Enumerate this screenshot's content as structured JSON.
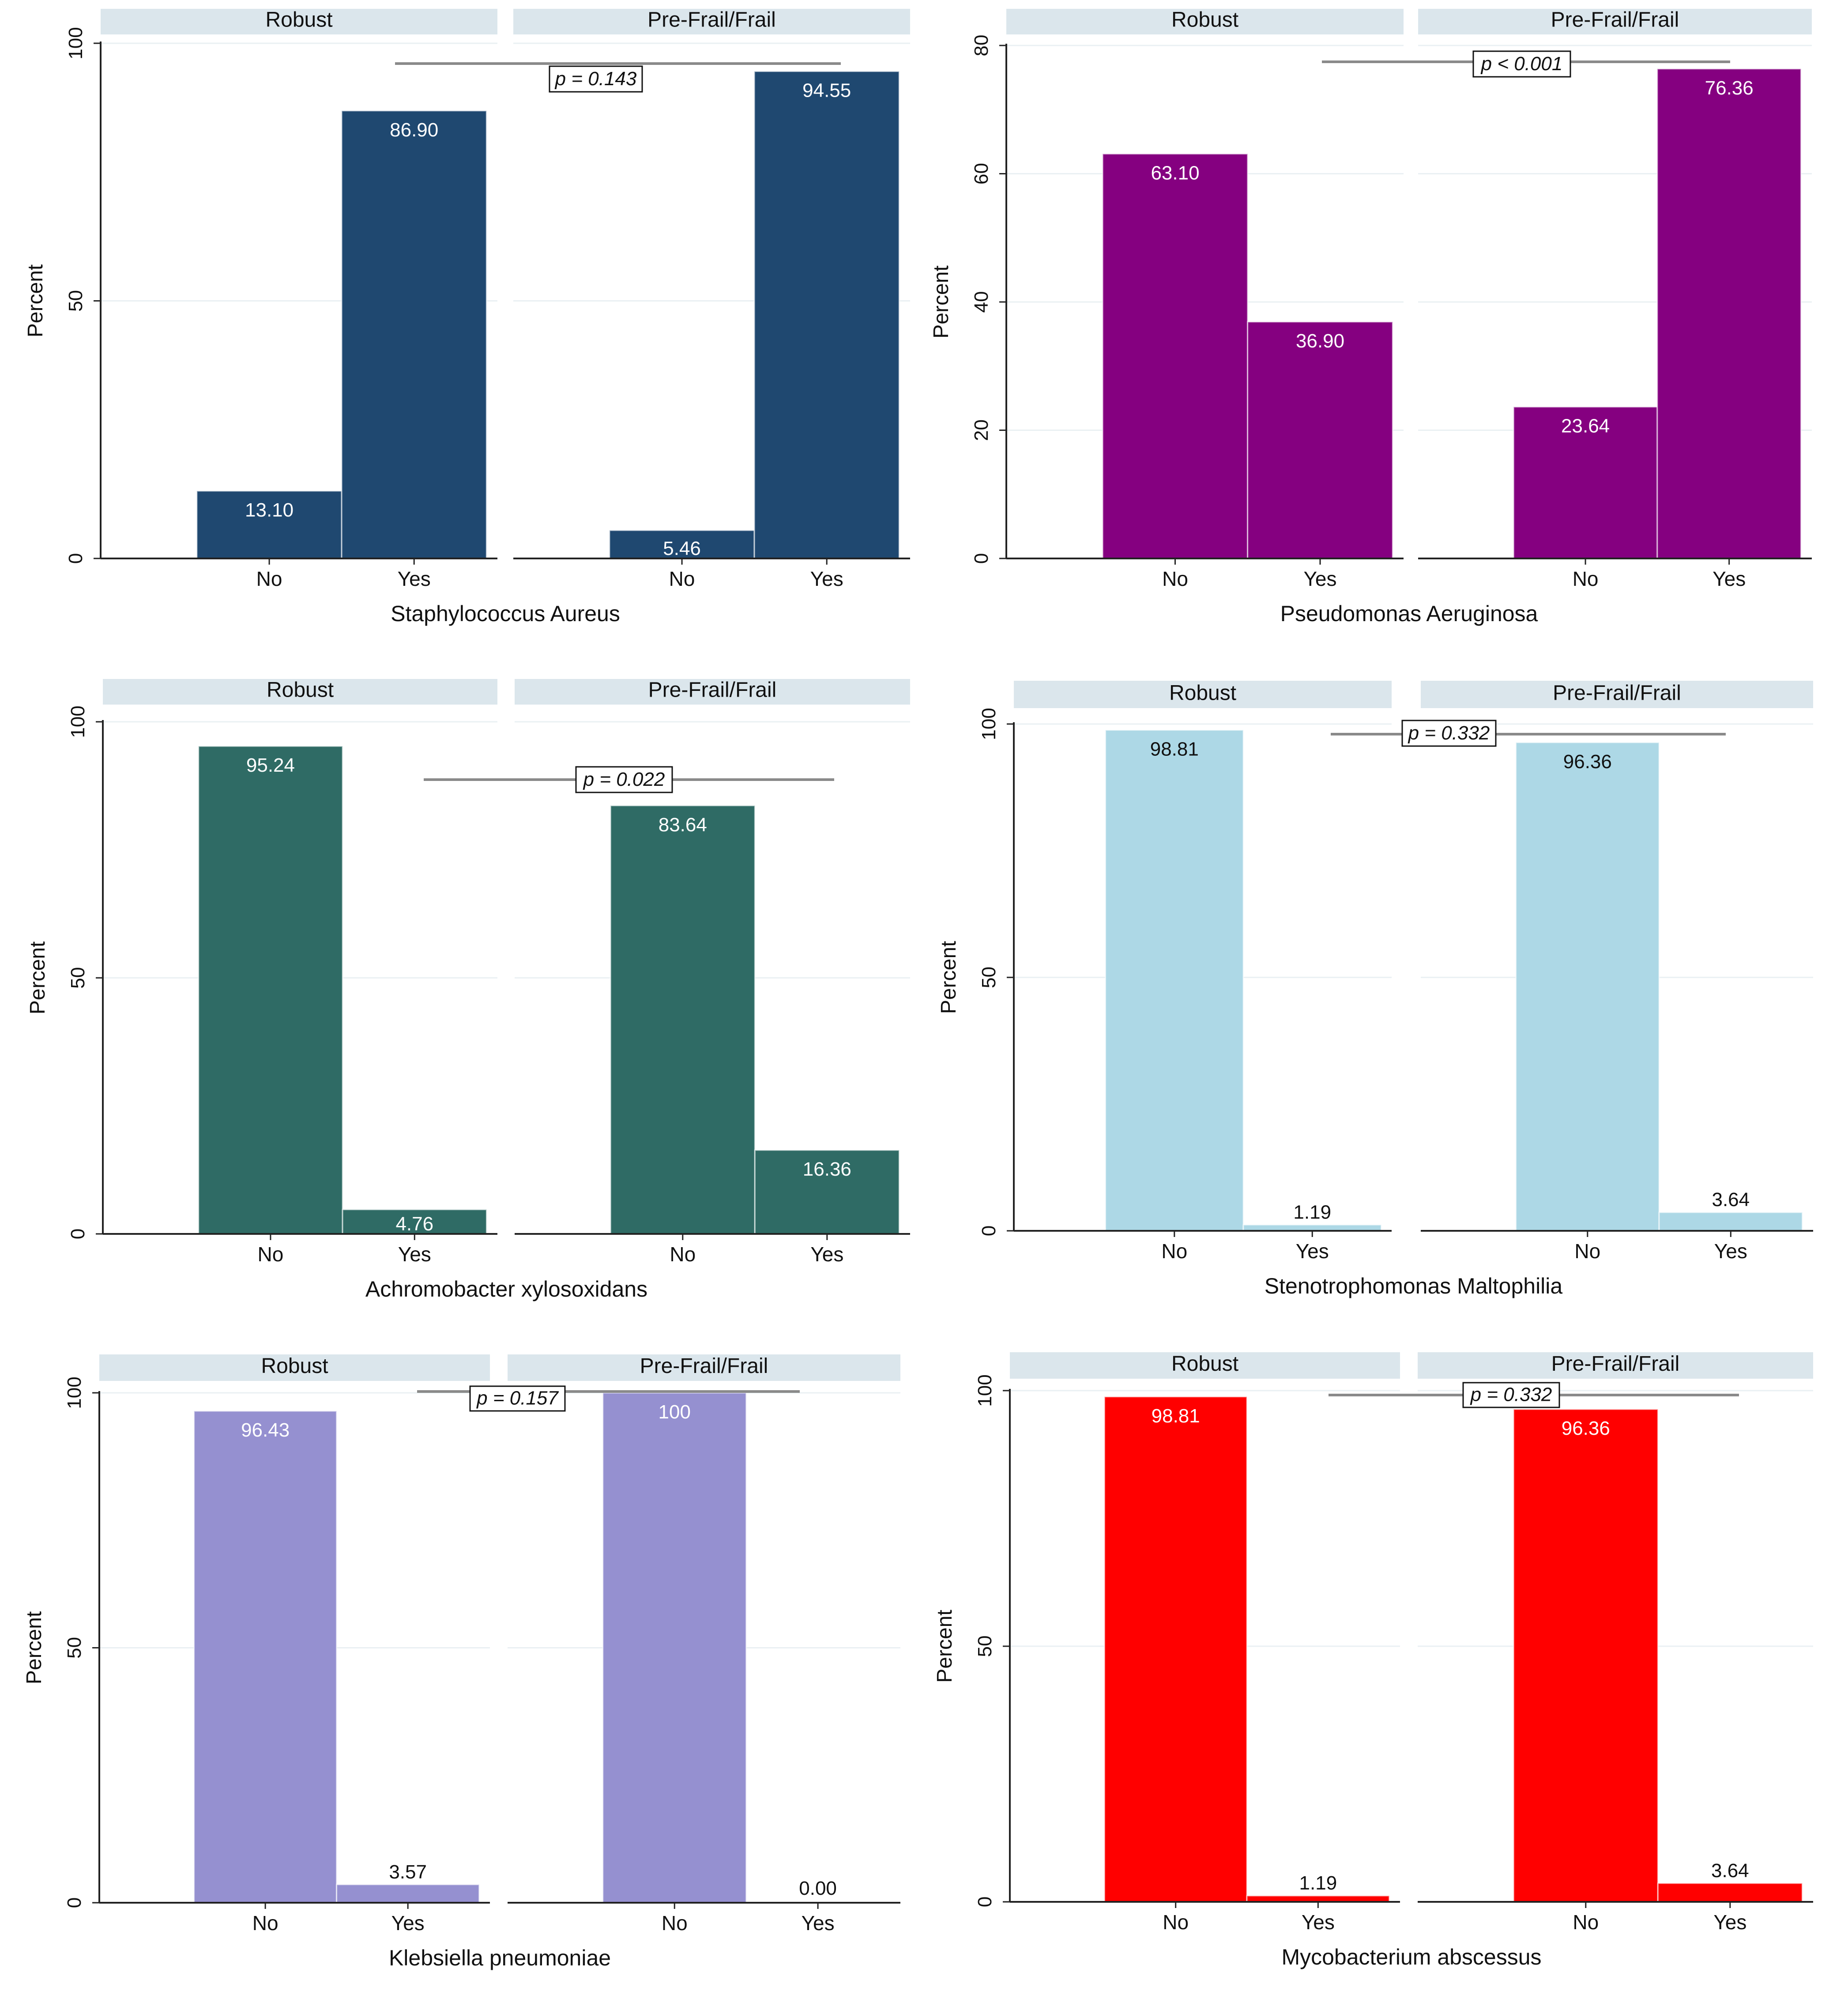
{
  "figure": {
    "background": "#ffffff",
    "strip_color": "#dbe6ec",
    "grid_color": "#eaf0f3",
    "bracket_color": "#8a8a8a"
  },
  "chart_data": [
    {
      "type": "bar",
      "organism": "Staphylococcus Aureus",
      "xlabel": "Staphylococcus Aureus",
      "ylabel": "Percent",
      "ylim": [
        0,
        100
      ],
      "yticks": [
        0,
        50,
        100
      ],
      "categories": [
        "No",
        "Yes"
      ],
      "panels": [
        {
          "name": "Robust",
          "values": [
            13.1,
            86.9
          ],
          "labels": [
            "13.10",
            "86.90"
          ]
        },
        {
          "name": "Pre-Frail/Frail",
          "values": [
            5.46,
            94.55
          ],
          "labels": [
            "5.46",
            "94.55"
          ]
        }
      ],
      "pvalue": "p = 0.143",
      "bar_color": "#1f4870",
      "label_color": "#ffffff"
    },
    {
      "type": "bar",
      "organism": "Pseudomonas Aeruginosa",
      "xlabel": "Pseudomonas Aeruginosa",
      "ylabel": "Percent",
      "ylim": [
        0,
        80
      ],
      "yticks": [
        0,
        20,
        40,
        60,
        80
      ],
      "categories": [
        "No",
        "Yes"
      ],
      "panels": [
        {
          "name": "Robust",
          "values": [
            63.1,
            36.9
          ],
          "labels": [
            "63.10",
            "36.90"
          ]
        },
        {
          "name": "Pre-Frail/Frail",
          "values": [
            23.64,
            76.36
          ],
          "labels": [
            "23.64",
            "76.36"
          ]
        }
      ],
      "pvalue": "p < 0.001",
      "bar_color": "#850080",
      "label_color": "#ffffff"
    },
    {
      "type": "bar",
      "organism": "Achromobacter xylosoxidans",
      "xlabel": "Achromobacter xylosoxidans",
      "ylabel": "Percent",
      "ylim": [
        0,
        100
      ],
      "yticks": [
        0,
        50,
        100
      ],
      "categories": [
        "No",
        "Yes"
      ],
      "panels": [
        {
          "name": "Robust",
          "values": [
            95.24,
            4.76
          ],
          "labels": [
            "95.24",
            "4.76"
          ]
        },
        {
          "name": "Pre-Frail/Frail",
          "values": [
            83.64,
            16.36
          ],
          "labels": [
            "83.64",
            "16.36"
          ]
        }
      ],
      "pvalue": "p = 0.022",
      "bar_color": "#2f6b65",
      "label_color": "#ffffff"
    },
    {
      "type": "bar",
      "organism": "Stenotrophomonas Maltophilia",
      "xlabel": "Stenotrophomonas Maltophilia",
      "ylabel": "Percent",
      "ylim": [
        0,
        100
      ],
      "yticks": [
        0,
        50,
        100
      ],
      "categories": [
        "No",
        "Yes"
      ],
      "panels": [
        {
          "name": "Robust",
          "values": [
            98.81,
            1.19
          ],
          "labels": [
            "98.81",
            "1.19"
          ]
        },
        {
          "name": "Pre-Frail/Frail",
          "values": [
            96.36,
            3.64
          ],
          "labels": [
            "96.36",
            "3.64"
          ]
        }
      ],
      "pvalue": "p = 0.332",
      "bar_color": "#add8e6",
      "label_color": "#111111"
    },
    {
      "type": "bar",
      "organism": "Klebsiella pneumoniae",
      "xlabel": "Klebsiella pneumoniae",
      "ylabel": "Percent",
      "ylim": [
        0,
        100
      ],
      "yticks": [
        0,
        50,
        100
      ],
      "categories": [
        "No",
        "Yes"
      ],
      "panels": [
        {
          "name": "Robust",
          "values": [
            96.43,
            3.57
          ],
          "labels": [
            "96.43",
            "3.57"
          ]
        },
        {
          "name": "Pre-Frail/Frail",
          "values": [
            100,
            0.0
          ],
          "labels": [
            "100",
            "0.00"
          ]
        }
      ],
      "pvalue": "p = 0.157",
      "bar_color": "#9590d0",
      "label_color": "#ffffff"
    },
    {
      "type": "bar",
      "organism": "Mycobacterium abscessus",
      "xlabel": "Mycobacterium abscessus",
      "ylabel": "Percent",
      "ylim": [
        0,
        100
      ],
      "yticks": [
        0,
        50,
        100
      ],
      "categories": [
        "No",
        "Yes"
      ],
      "panels": [
        {
          "name": "Robust",
          "values": [
            98.81,
            1.19
          ],
          "labels": [
            "98.81",
            "1.19"
          ]
        },
        {
          "name": "Pre-Frail/Frail",
          "values": [
            96.36,
            3.64
          ],
          "labels": [
            "96.36",
            "3.64"
          ]
        }
      ],
      "pvalue": "p = 0.332",
      "bar_color": "#ff0000",
      "label_color": "#ffffff"
    }
  ]
}
